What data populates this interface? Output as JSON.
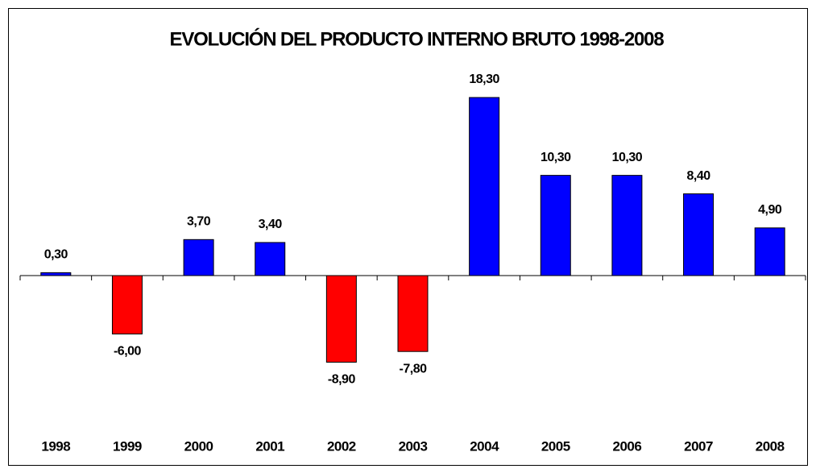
{
  "chart_data": {
    "type": "bar",
    "title": "EVOLUCIÓN DEL PRODUCTO INTERNO BRUTO 1998-2008",
    "categories": [
      "1998",
      "1999",
      "2000",
      "2001",
      "2002",
      "2003",
      "2004",
      "2005",
      "2006",
      "2007",
      "2008"
    ],
    "values": [
      0.3,
      -6,
      3.7,
      3.4,
      -8.9,
      -7.8,
      18.3,
      10.3,
      10.3,
      8.4,
      4.9
    ],
    "value_labels": [
      "0,30",
      "-6,00",
      "3,70",
      "3,40",
      "-8,90",
      "-7,80",
      "18,30",
      "10,30",
      "10,30",
      "8,40",
      "4,90"
    ],
    "color": "#0000ff",
    "negative_color": "#ff0000"
  }
}
